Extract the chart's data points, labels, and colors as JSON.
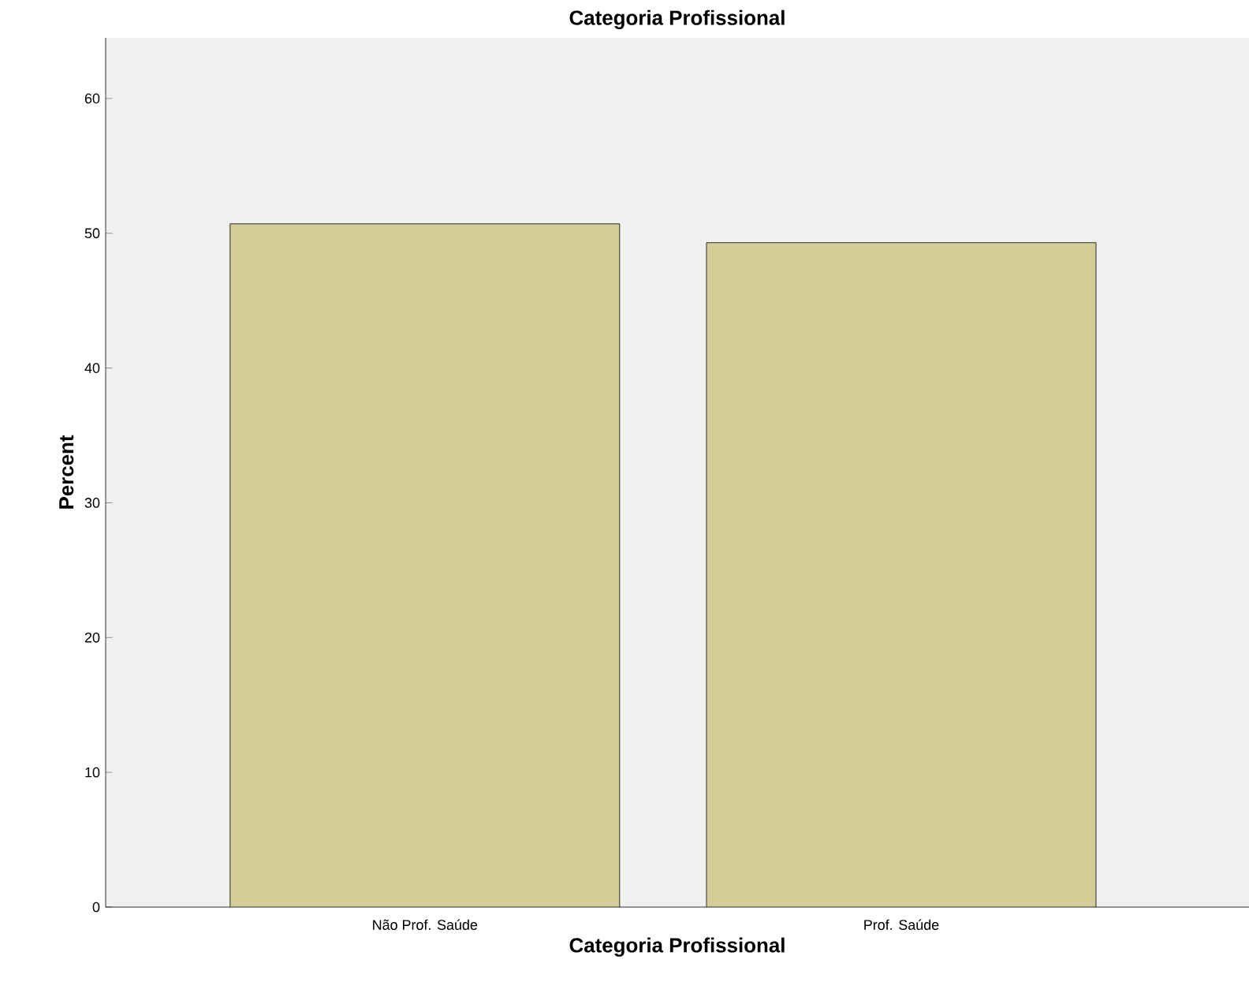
{
  "chart_data": {
    "type": "bar",
    "title": "Categoria Profissional",
    "xlabel": "Categoria Profissional",
    "ylabel": "Percent",
    "categories": [
      "Não Prof. Saúde",
      "Prof. Saúde"
    ],
    "values": [
      50.7,
      49.3
    ],
    "color": "#d3ce98",
    "ylim": [
      0,
      64.5
    ],
    "yticks": [
      0,
      10,
      20,
      30,
      40,
      50,
      60
    ]
  }
}
